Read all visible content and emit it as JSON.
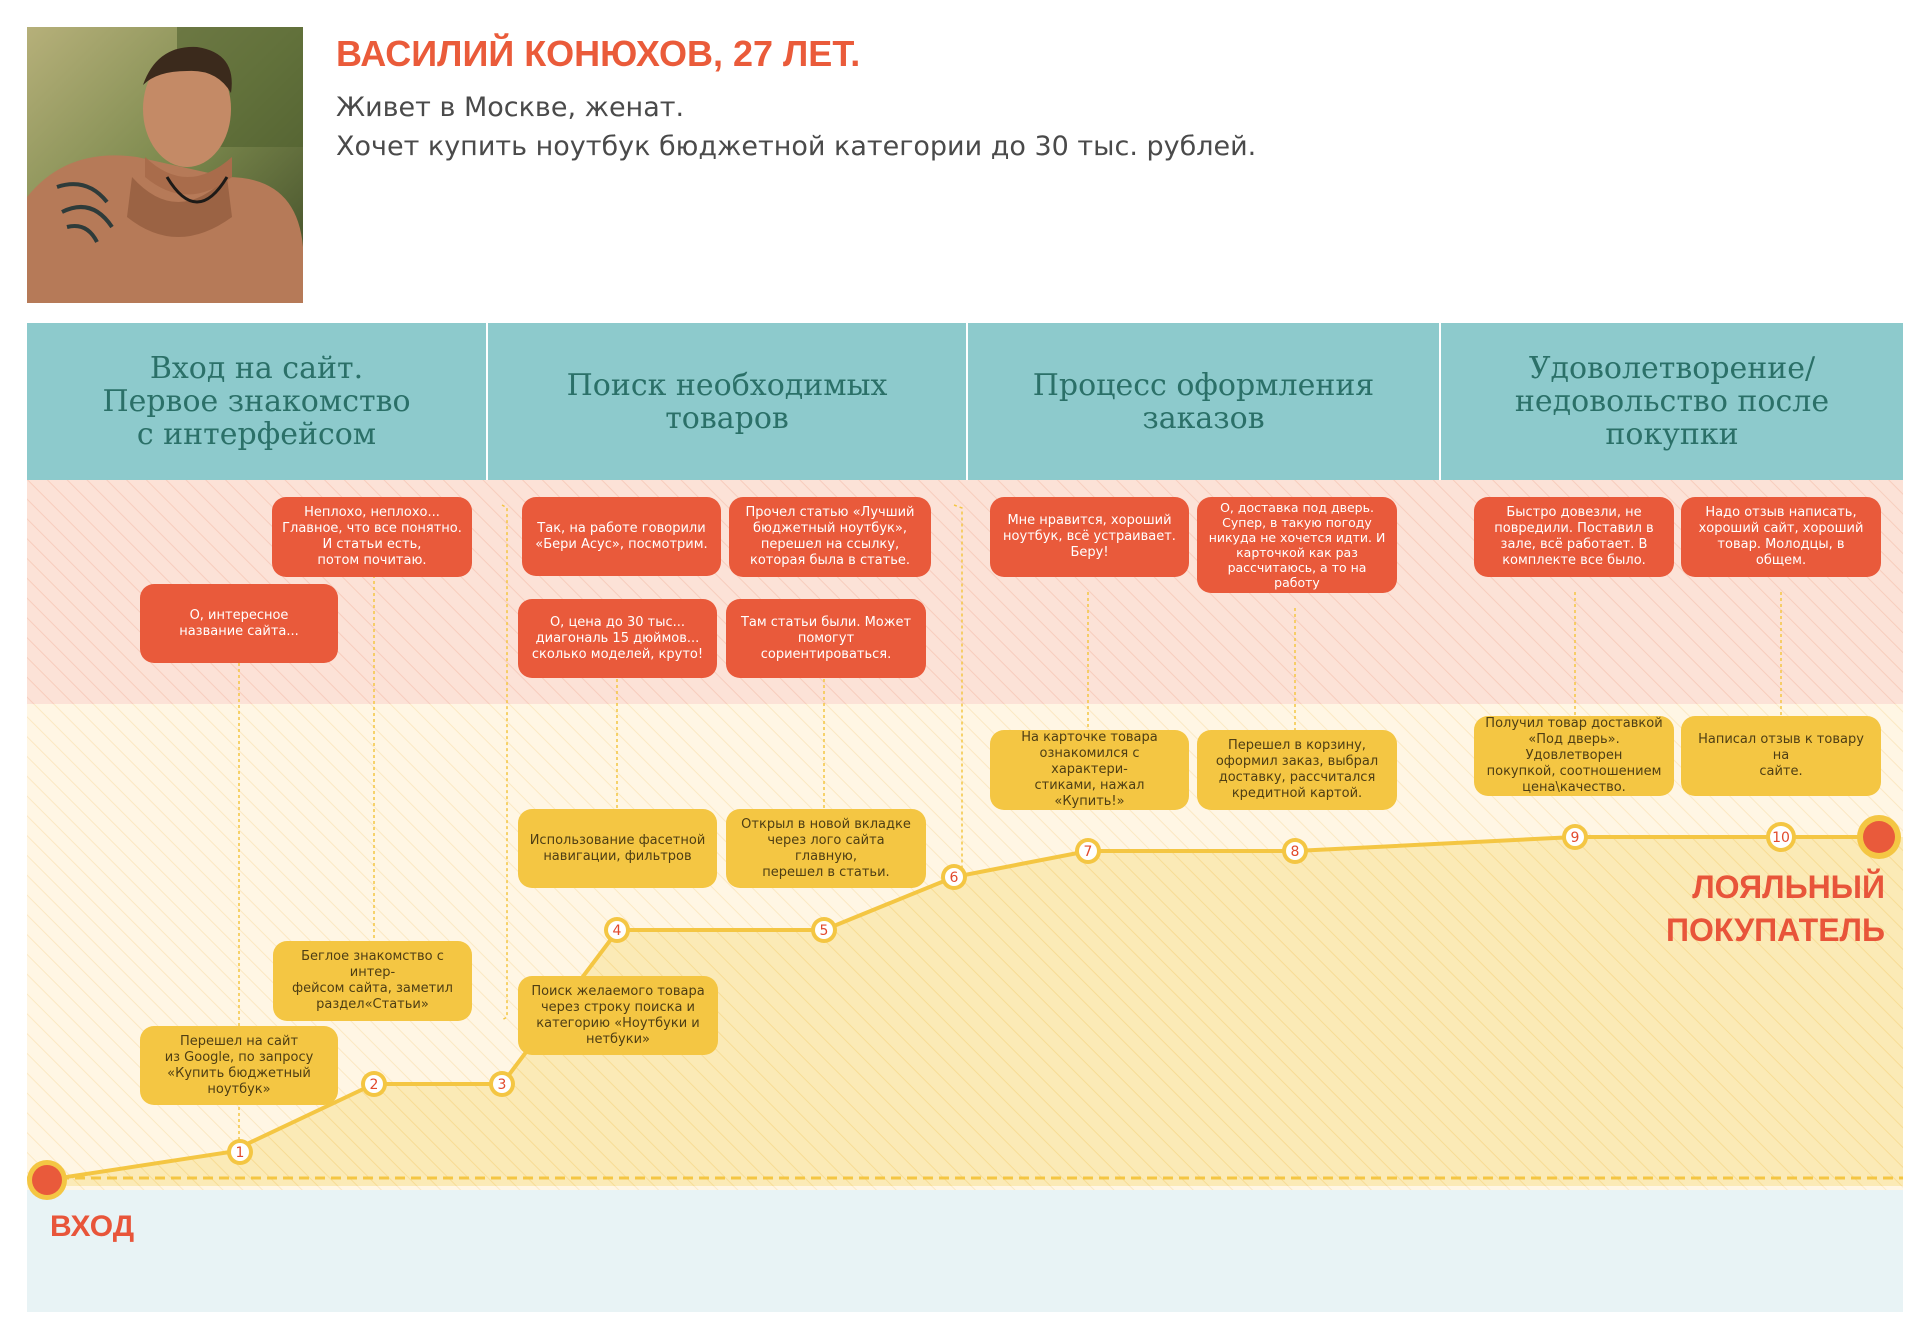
{
  "persona": {
    "name": "ВАСИЛИЙ КОНЮХОВ, 27 ЛЕТ.",
    "line1": "Живет в Москве, женат.",
    "line2": "Хочет купить ноутбук бюджетной категории до 30 тыс. рублей."
  },
  "stages": [
    "Вход на сайт.\nПервое знакомство\nс интерфейсом",
    "Поиск необходимых\nтоваров",
    "Процесс оформления\nзаказов",
    "Удоволетворение/\nнедовольство после\nпокупки"
  ],
  "emotions": [
    "О, интересное\nназвание сайта...",
    "Неплохо, неплохо...\nГлавное, что все понятно.\nИ статьи есть,\nпотом почитаю.",
    "Так, на работе говорили\n«Бери Асус», посмотрим.",
    "О, цена до 30 тыс...\nдиагональ 15 дюймов...\nсколько моделей, круто!",
    "Прочел статью «Лучший\nбюджетный ноутбук»,\nперешел на ссылку,\nкоторая была в статье.",
    "Там статьи были. Может\nпомогут сориентироваться.",
    "Мне нравится, хороший\nноутбук, всё устраивает.\nБеру!",
    "О, доставка под дверь.\nСупер, в такую погоду\nникуда не хочется идти. И\nкарточкой как раз\nрассчитаюсь, а то на работу",
    "Быстро довезли, не\nповредили. Поставил в\nзале, всё работает. В\nкомплекте все было.",
    "Надо отзыв написать,\nхороший сайт, хороший\nтовар. Молодцы, в общем."
  ],
  "actions": [
    "Перешел на сайт\nиз Google, по запросу\n«Купить бюджетный ноутбук»",
    "Беглое знакомство с интер-\nфейсом сайта, заметил\nраздел«Статьи»",
    "Поиск желаемого товара\nчерез строку поиска и\nкатегорию «Ноутбуки и\nнетбуки»",
    "Использование фасетной\nнавигации, фильтров",
    "Открыл в новой вкладке\nчерез лого сайта главную,\nперешел в статьи.",
    "На карточке товара\nознакомился с характери-\nстиками, нажал «Купить!»",
    "Перешел в корзину,\nоформил заказ, выбрал\nдоставку, рассчитался\nкредитной картой.",
    "Получил товар доставкой\n«Под дверь». Удовлетворен\nпокупкой, соотношением\nцена\\качество.",
    "Написал отзыв к товару на\nсайте."
  ],
  "node_numbers": [
    "1",
    "2",
    "3",
    "4",
    "5",
    "6",
    "7",
    "8",
    "9",
    "10"
  ],
  "end_labels": {
    "entry": "ВХОД",
    "loyal": "ЛОЯЛЬНЫЙ\nПОКУПАТЕЛЬ"
  },
  "colors": {
    "accent": "#ea5b3a",
    "stage_header": "#8dcacc",
    "emotion_bubble": "#e95a3b",
    "action_bubble": "#f4c643",
    "journey_line": "#f4c643"
  }
}
